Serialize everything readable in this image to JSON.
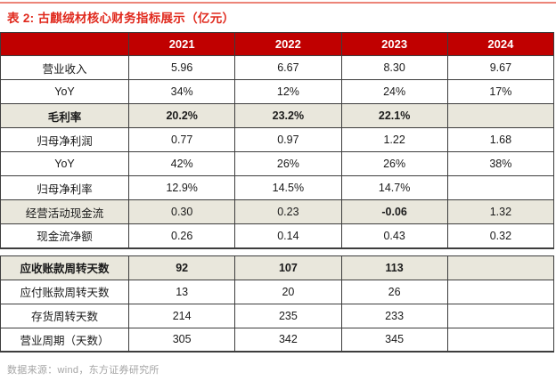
{
  "title": "表 2: 古麒绒材核心财务指标展示（亿元）",
  "source": "数据来源：wind，东方证券研究所",
  "colors": {
    "header_bg": "#c00000",
    "title_red": "#e0291d",
    "highlight_bg": "#e9e7dc",
    "border": "#3d3d3d",
    "top_line": "#ec8478",
    "source_gray": "#a5a5a5"
  },
  "chart_data": {
    "type": "table",
    "title": "古麒绒材核心财务指标展示（亿元）",
    "columns": [
      "",
      "2021",
      "2022",
      "2023",
      "2024"
    ],
    "sections": [
      {
        "rows": [
          {
            "label": "营业收入",
            "values": [
              "5.96",
              "6.67",
              "8.30",
              "9.67"
            ],
            "highlight": false,
            "bold": false,
            "bold_cells": []
          },
          {
            "label": "YoY",
            "values": [
              "34%",
              "12%",
              "24%",
              "17%"
            ],
            "highlight": false,
            "bold": false,
            "bold_cells": []
          },
          {
            "label": "毛利率",
            "values": [
              "20.2%",
              "23.2%",
              "22.1%",
              ""
            ],
            "highlight": true,
            "bold": true,
            "bold_cells": []
          },
          {
            "label": "归母净利润",
            "values": [
              "0.77",
              "0.97",
              "1.22",
              "1.68"
            ],
            "highlight": false,
            "bold": false,
            "bold_cells": []
          },
          {
            "label": "YoY",
            "values": [
              "42%",
              "26%",
              "26%",
              "38%"
            ],
            "highlight": false,
            "bold": false,
            "bold_cells": []
          },
          {
            "label": "归母净利率",
            "values": [
              "12.9%",
              "14.5%",
              "14.7%",
              ""
            ],
            "highlight": false,
            "bold": false,
            "bold_cells": []
          },
          {
            "label": "经营活动现金流",
            "values": [
              "0.30",
              "0.23",
              "-0.06",
              "1.32"
            ],
            "highlight": true,
            "bold": false,
            "bold_cells": [
              2
            ]
          },
          {
            "label": "现金流净额",
            "values": [
              "0.26",
              "0.14",
              "0.43",
              "0.32"
            ],
            "highlight": false,
            "bold": false,
            "bold_cells": []
          }
        ]
      },
      {
        "rows": [
          {
            "label": "应收账款周转天数",
            "values": [
              "92",
              "107",
              "113",
              ""
            ],
            "highlight": true,
            "bold": true,
            "bold_cells": []
          },
          {
            "label": "应付账款周转天数",
            "values": [
              "13",
              "20",
              "26",
              ""
            ],
            "highlight": false,
            "bold": false,
            "bold_cells": []
          },
          {
            "label": "存货周转天数",
            "values": [
              "214",
              "235",
              "233",
              ""
            ],
            "highlight": false,
            "bold": false,
            "bold_cells": []
          },
          {
            "label": "营业周期（天数）",
            "values": [
              "305",
              "342",
              "345",
              ""
            ],
            "highlight": false,
            "bold": false,
            "bold_cells": []
          }
        ]
      }
    ]
  }
}
